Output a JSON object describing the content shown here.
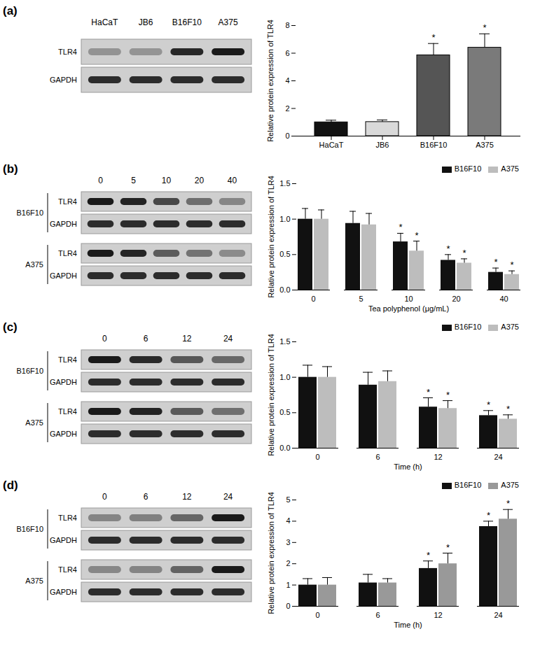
{
  "chart_data": [
    {
      "type": "bar",
      "title": "(a)",
      "ylabel": "Relative protein expression of TLR4",
      "categories": [
        "HaCaT",
        "JB6",
        "B16F10",
        "A375"
      ],
      "values": [
        1.0,
        1.02,
        5.85,
        6.4
      ],
      "errors": [
        0.15,
        0.15,
        0.85,
        1.0
      ],
      "significance": [
        null,
        null,
        "*",
        "*"
      ],
      "colors": [
        "#111111",
        "#d9d9d9",
        "#555555",
        "#7a7a7a"
      ],
      "ylim": [
        0,
        8
      ],
      "yticks": [
        0,
        2,
        4,
        6,
        8
      ],
      "blot": {
        "proteins": [
          "TLR4",
          "GAPDH"
        ]
      }
    },
    {
      "type": "bar",
      "title": "(b)",
      "ylabel": "Relative protein expression of TLR4",
      "xlabel": "Tea polyphenol (μg/mL)",
      "categories": [
        "0",
        "5",
        "10",
        "20",
        "40"
      ],
      "series": [
        {
          "name": "B16F10",
          "color": "#111111",
          "values": [
            1.0,
            0.94,
            0.68,
            0.42,
            0.25
          ],
          "errors": [
            0.15,
            0.17,
            0.12,
            0.08,
            0.06
          ],
          "significance": [
            null,
            null,
            "*",
            "*",
            "*"
          ]
        },
        {
          "name": "A375",
          "color": "#bdbdbd",
          "values": [
            1.0,
            0.92,
            0.55,
            0.38,
            0.22
          ],
          "errors": [
            0.13,
            0.16,
            0.14,
            0.06,
            0.05
          ],
          "significance": [
            null,
            null,
            "*",
            "*",
            "*"
          ]
        }
      ],
      "ylim": [
        0,
        1.5
      ],
      "yticks": [
        {
          "value": 0,
          "label": "0.0"
        },
        {
          "value": 0.5,
          "label": "0.5"
        },
        {
          "value": 1,
          "label": "1.0"
        },
        {
          "value": 1.5,
          "label": "1.5"
        }
      ],
      "legend": "top-right",
      "blot": {
        "proteins": [
          "TLR4",
          "GAPDH"
        ]
      }
    },
    {
      "type": "bar",
      "title": "(c)",
      "ylabel": "Relative protein expression of TLR4",
      "xlabel": "Time (h)",
      "categories": [
        "0",
        "6",
        "12",
        "24"
      ],
      "series": [
        {
          "name": "B16F10",
          "color": "#111111",
          "values": [
            1.0,
            0.89,
            0.58,
            0.46
          ],
          "errors": [
            0.17,
            0.18,
            0.13,
            0.07
          ],
          "significance": [
            null,
            null,
            "*",
            "*"
          ]
        },
        {
          "name": "A375",
          "color": "#bdbdbd",
          "values": [
            1.0,
            0.94,
            0.56,
            0.41
          ],
          "errors": [
            0.15,
            0.15,
            0.11,
            0.06
          ],
          "significance": [
            null,
            null,
            "*",
            "*"
          ]
        }
      ],
      "ylim": [
        0,
        1.5
      ],
      "yticks": [
        {
          "value": 0,
          "label": "0.0"
        },
        {
          "value": 0.5,
          "label": "0.5"
        },
        {
          "value": 1,
          "label": "1.0"
        },
        {
          "value": 1.5,
          "label": "1.5"
        }
      ],
      "legend": "top-right",
      "blot": {
        "proteins": [
          "TLR4",
          "GAPDH"
        ]
      }
    },
    {
      "type": "bar",
      "title": "(d)",
      "ylabel": "Relative protein expression of TLR4",
      "xlabel": "Time (h)",
      "categories": [
        "0",
        "6",
        "12",
        "24"
      ],
      "series": [
        {
          "name": "B16F10",
          "color": "#111111",
          "values": [
            1.0,
            1.1,
            1.78,
            3.75
          ],
          "errors": [
            0.3,
            0.4,
            0.35,
            0.25
          ],
          "significance": [
            null,
            null,
            "*",
            "*"
          ]
        },
        {
          "name": "A375",
          "color": "#999999",
          "values": [
            1.0,
            1.1,
            2.0,
            4.1
          ],
          "errors": [
            0.35,
            0.2,
            0.5,
            0.45
          ],
          "significance": [
            null,
            null,
            "*",
            "*"
          ]
        }
      ],
      "ylim": [
        0,
        5
      ],
      "yticks": [
        0,
        1,
        2,
        3,
        4,
        5
      ],
      "legend": "top-right",
      "blot": {
        "proteins": [
          "TLR4",
          "GAPDH"
        ]
      }
    }
  ]
}
